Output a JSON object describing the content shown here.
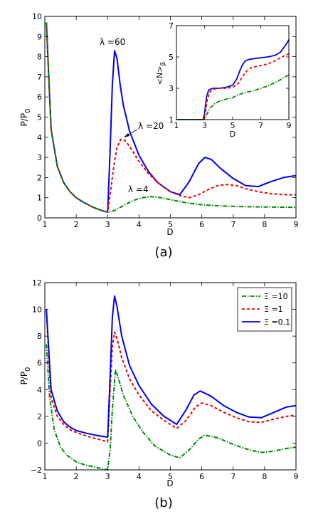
{
  "chart_data": [
    {
      "panel_label": "(a)",
      "type": "line",
      "xlabel": "D",
      "ylabel": "P/P",
      "ylabel_sub": "0",
      "xlim": [
        1,
        9
      ],
      "ylim": [
        0,
        10
      ],
      "xticks": [
        1,
        2,
        3,
        4,
        5,
        6,
        7,
        8,
        9
      ],
      "yticks": [
        0,
        1,
        2,
        3,
        4,
        5,
        6,
        7,
        8,
        9,
        10
      ],
      "annotations": [
        "λ =60",
        "λ =20",
        "λ =4"
      ],
      "series": [
        {
          "name": "λ =60",
          "color": "#0000ee",
          "style": "solid",
          "x": [
            1.05,
            1.2,
            1.4,
            1.6,
            1.8,
            2.0,
            2.2,
            2.5,
            2.8,
            3.0,
            3.08,
            3.15,
            3.22,
            3.3,
            3.4,
            3.5,
            3.7,
            4.0,
            4.3,
            4.6,
            5.0,
            5.3,
            5.6,
            5.9,
            6.1,
            6.3,
            6.6,
            7.0,
            7.4,
            7.8,
            8.2,
            8.6,
            9.0
          ],
          "y": [
            9.7,
            4.4,
            2.55,
            1.75,
            1.3,
            1.0,
            0.8,
            0.55,
            0.37,
            0.28,
            3.4,
            6.6,
            8.3,
            7.9,
            6.6,
            5.6,
            4.3,
            3.1,
            2.3,
            1.75,
            1.3,
            1.15,
            1.8,
            2.7,
            3.0,
            2.9,
            2.45,
            1.95,
            1.6,
            1.55,
            1.8,
            2.0,
            2.1
          ]
        },
        {
          "name": "λ =20",
          "color": "#ee0000",
          "style": "dashed",
          "x": [
            1.05,
            1.2,
            1.4,
            1.6,
            1.8,
            2.0,
            2.2,
            2.5,
            2.8,
            3.0,
            3.1,
            3.2,
            3.3,
            3.42,
            3.55,
            3.7,
            4.0,
            4.3,
            4.6,
            5.0,
            5.3,
            5.6,
            5.9,
            6.2,
            6.5,
            6.8,
            7.1,
            7.4,
            7.8,
            8.2,
            8.6,
            9.0
          ],
          "y": [
            9.7,
            4.4,
            2.55,
            1.75,
            1.3,
            1.0,
            0.8,
            0.55,
            0.37,
            0.28,
            1.4,
            2.6,
            3.5,
            3.9,
            3.85,
            3.55,
            2.8,
            2.2,
            1.75,
            1.3,
            1.1,
            1.0,
            1.15,
            1.4,
            1.6,
            1.65,
            1.6,
            1.45,
            1.3,
            1.2,
            1.15,
            1.15
          ]
        },
        {
          "name": "λ =4",
          "color": "#008800",
          "style": "dashdot",
          "x": [
            1.05,
            1.2,
            1.4,
            1.6,
            1.8,
            2.0,
            2.2,
            2.5,
            2.8,
            3.0,
            3.2,
            3.5,
            3.8,
            4.1,
            4.4,
            4.7,
            5.0,
            5.5,
            6.0,
            6.5,
            7.0,
            7.5,
            8.0,
            8.5,
            9.0
          ],
          "y": [
            9.7,
            4.4,
            2.55,
            1.75,
            1.3,
            1.0,
            0.8,
            0.55,
            0.37,
            0.28,
            0.35,
            0.6,
            0.85,
            1.0,
            1.05,
            1.0,
            0.9,
            0.75,
            0.65,
            0.6,
            0.57,
            0.55,
            0.54,
            0.53,
            0.52
          ]
        }
      ],
      "inset": {
        "type": "line",
        "xlabel": "D",
        "ylabel": "<N>",
        "ylabel_sub": "β",
        "xlim": [
          1,
          9
        ],
        "ylim": [
          1,
          7
        ],
        "xticks": [
          1,
          3,
          5,
          7,
          9
        ],
        "yticks": [
          1,
          3,
          5,
          7
        ],
        "series": [
          {
            "name": "λ =60",
            "color": "#0000ee",
            "style": "solid",
            "x": [
              1,
              2,
              2.9,
              3.0,
              3.15,
              3.3,
              3.6,
              4.0,
              4.5,
              5.0,
              5.3,
              5.5,
              5.7,
              5.9,
              6.2,
              6.6,
              7.0,
              7.5,
              8.0,
              8.4,
              8.8,
              9.0
            ],
            "y": [
              1,
              1,
              1,
              1.4,
              2.5,
              2.9,
              3.0,
              3.0,
              3.05,
              3.2,
              3.6,
              4.1,
              4.5,
              4.75,
              4.85,
              4.9,
              4.95,
              5.0,
              5.1,
              5.3,
              5.8,
              6.1
            ]
          },
          {
            "name": "λ =20",
            "color": "#ee0000",
            "style": "dashed",
            "x": [
              1,
              2,
              2.9,
              3.05,
              3.2,
              3.4,
              3.7,
              4.0,
              4.5,
              5.0,
              5.4,
              5.7,
              6.0,
              6.3,
              6.7,
              7.0,
              7.5,
              8.0,
              8.5,
              9.0
            ],
            "y": [
              1,
              1,
              1,
              1.4,
              2.3,
              2.8,
              2.95,
              3.0,
              3.0,
              3.05,
              3.3,
              3.75,
              4.1,
              4.3,
              4.4,
              4.45,
              4.55,
              4.75,
              5.0,
              5.2
            ]
          },
          {
            "name": "λ =4",
            "color": "#008800",
            "style": "dashdot",
            "x": [
              1,
              2,
              3.0,
              3.2,
              3.4,
              3.7,
              4.0,
              4.5,
              5.0,
              5.3,
              5.6,
              6.0,
              6.5,
              7.0,
              7.5,
              8.0,
              8.5,
              9.0
            ],
            "y": [
              1,
              1,
              1,
              1.4,
              1.75,
              2.0,
              2.15,
              2.3,
              2.4,
              2.55,
              2.65,
              2.75,
              2.85,
              3.0,
              3.15,
              3.35,
              3.6,
              3.85
            ]
          }
        ]
      }
    },
    {
      "panel_label": "(b)",
      "type": "line",
      "xlabel": "D",
      "ylabel": "P/P",
      "ylabel_sub": "0",
      "xlim": [
        1,
        9
      ],
      "ylim": [
        -2,
        12
      ],
      "xticks": [
        1,
        2,
        3,
        4,
        5,
        6,
        7,
        8,
        9
      ],
      "yticks": [
        -2,
        0,
        2,
        4,
        6,
        8,
        10,
        12
      ],
      "legend": "top-right",
      "series": [
        {
          "name": "Ξ =10",
          "color": "#008800",
          "style": "dashdot",
          "x": [
            1.05,
            1.15,
            1.3,
            1.5,
            1.7,
            2.0,
            2.3,
            2.6,
            3.0,
            3.08,
            3.15,
            3.25,
            3.35,
            3.5,
            3.8,
            4.1,
            4.5,
            5.0,
            5.3,
            5.6,
            5.9,
            6.1,
            6.5,
            7.0,
            7.5,
            7.9,
            8.3,
            8.7,
            9.0
          ],
          "y": [
            7.4,
            3.5,
            1.0,
            -0.3,
            -0.9,
            -1.4,
            -1.65,
            -1.8,
            -2.0,
            -0.5,
            2.5,
            5.5,
            4.8,
            3.6,
            2.0,
            0.9,
            -0.2,
            -0.9,
            -1.1,
            -0.5,
            0.3,
            0.6,
            0.4,
            -0.1,
            -0.5,
            -0.7,
            -0.6,
            -0.4,
            -0.3
          ]
        },
        {
          "name": "Ξ =1",
          "color": "#ee0000",
          "style": "dashed",
          "x": [
            1.05,
            1.2,
            1.4,
            1.6,
            1.8,
            2.0,
            2.3,
            2.6,
            3.0,
            3.08,
            3.15,
            3.22,
            3.3,
            3.45,
            3.7,
            4.0,
            4.4,
            4.8,
            5.2,
            5.5,
            5.8,
            6.0,
            6.3,
            6.7,
            7.1,
            7.5,
            7.9,
            8.3,
            8.7,
            9.0
          ],
          "y": [
            9.9,
            3.4,
            2.0,
            1.4,
            1.0,
            0.8,
            0.55,
            0.35,
            0.1,
            4.0,
            7.2,
            8.3,
            7.8,
            6.4,
            4.8,
            3.6,
            2.4,
            1.7,
            1.1,
            1.7,
            2.7,
            3.0,
            2.8,
            2.3,
            1.9,
            1.6,
            1.55,
            1.8,
            2.0,
            2.1
          ]
        },
        {
          "name": "Ξ =0.1",
          "color": "#0000ee",
          "style": "solid",
          "x": [
            1.05,
            1.2,
            1.4,
            1.6,
            1.8,
            2.0,
            2.3,
            2.6,
            3.0,
            3.08,
            3.15,
            3.22,
            3.3,
            3.45,
            3.7,
            4.0,
            4.4,
            4.8,
            5.2,
            5.5,
            5.75,
            5.95,
            6.3,
            6.7,
            7.1,
            7.5,
            7.9,
            8.3,
            8.7,
            9.0
          ],
          "y": [
            10.0,
            4.0,
            2.4,
            1.6,
            1.2,
            0.95,
            0.75,
            0.6,
            0.45,
            5.0,
            9.4,
            11.0,
            10.2,
            8.0,
            5.8,
            4.3,
            2.9,
            2.0,
            1.4,
            2.5,
            3.6,
            3.9,
            3.5,
            2.8,
            2.3,
            1.95,
            1.9,
            2.3,
            2.7,
            2.8
          ]
        }
      ]
    }
  ]
}
